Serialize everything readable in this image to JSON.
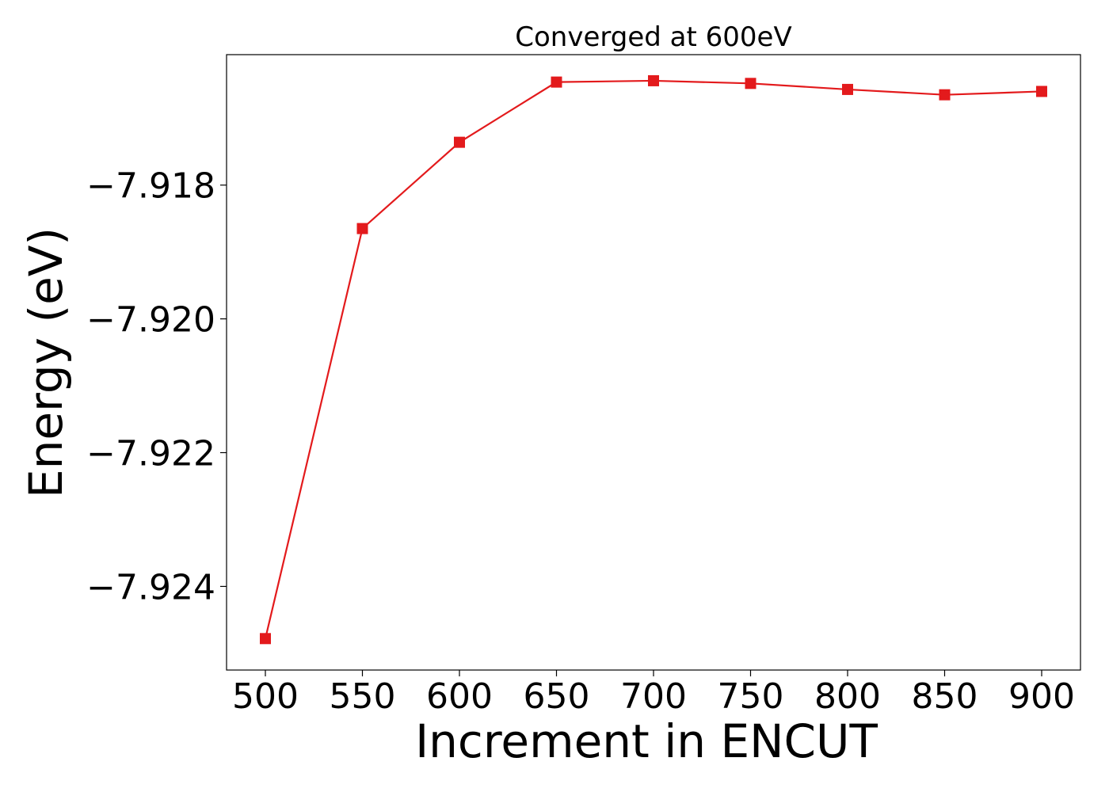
{
  "chart_data": {
    "type": "line",
    "title": "Converged at 600eV",
    "xlabel": "Increment in ENCUT",
    "ylabel": "Energy (eV)",
    "xlim": [
      480,
      920
    ],
    "ylim": [
      -7.92525,
      -7.91605
    ],
    "xticks": [
      500,
      550,
      600,
      650,
      700,
      750,
      800,
      850,
      900
    ],
    "yticks": [
      -7.918,
      -7.92,
      -7.922,
      -7.924
    ],
    "ytick_labels": [
      "−7.918",
      "−7.920",
      "−7.922",
      "−7.924"
    ],
    "grid": false,
    "series": [
      {
        "color": "#e31a1c",
        "marker": "square",
        "x": [
          500,
          550,
          600,
          650,
          700,
          750,
          800,
          850,
          900
        ],
        "y": [
          -7.92478,
          -7.91865,
          -7.91736,
          -7.91646,
          -7.91644,
          -7.91648,
          -7.91657,
          -7.91665,
          -7.9166
        ]
      }
    ]
  }
}
